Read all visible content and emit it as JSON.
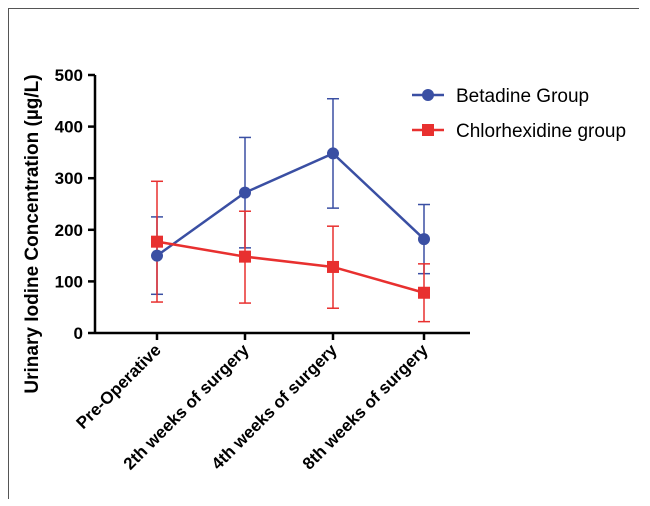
{
  "chart_data": {
    "type": "line",
    "categories": [
      "Pre-Operative",
      "2th weeks of surgery",
      "4th weeks of surgery",
      "8th weeks of surgery"
    ],
    "ylabel": "Urinary Iodine Concentration (µg/L)",
    "ylim": [
      0,
      500
    ],
    "yticks": [
      "0",
      "100",
      "200",
      "300",
      "400",
      "500"
    ],
    "legend_position": "top-right",
    "series": [
      {
        "name": "Betadine Group",
        "color": "#3a4fa3",
        "marker": "circle",
        "values": [
          150,
          272,
          348,
          182
        ],
        "err_low": [
          75,
          165,
          242,
          115
        ],
        "err_high": [
          225,
          379,
          454,
          249
        ]
      },
      {
        "name": "Chlorhexidine group",
        "color": "#e8302f",
        "marker": "square",
        "values": [
          177,
          148,
          128,
          78
        ],
        "err_low": [
          60,
          58,
          48,
          22
        ],
        "err_high": [
          294,
          236,
          207,
          134
        ]
      }
    ]
  }
}
